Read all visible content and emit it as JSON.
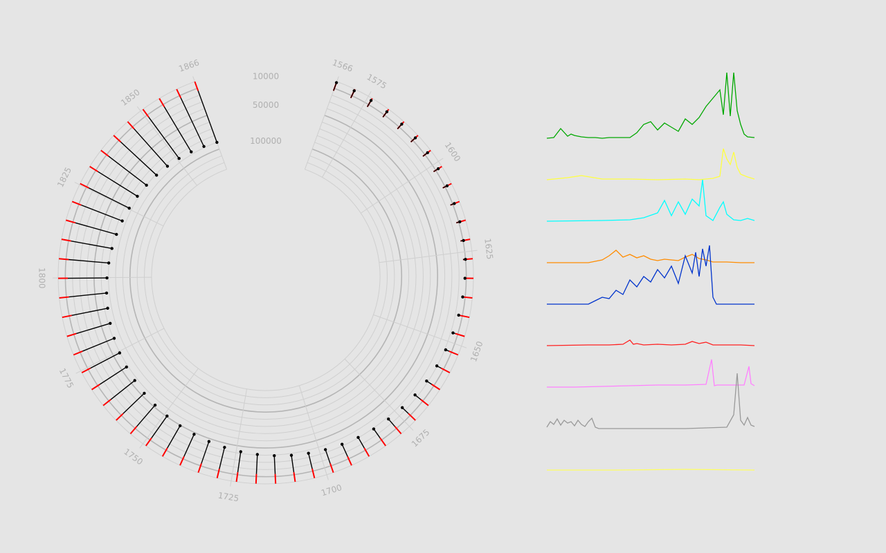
{
  "chart_data": [
    {
      "type": "radial-lollipop",
      "title": "",
      "year_range": [
        1566,
        1866
      ],
      "year_tick_labels": [
        "1566",
        "1575",
        "1600",
        "1625",
        "1650",
        "1675",
        "1700",
        "1725",
        "1750",
        "1775",
        "1800",
        "1825",
        "1850",
        "1866"
      ],
      "ring_labels": [
        "10000",
        "50000",
        "100000"
      ],
      "ring_values": [
        10000,
        50000,
        100000
      ],
      "r_domain": [
        0,
        130000
      ],
      "grid": true,
      "colors": {
        "embarked": "#ff0000",
        "disembarked": "#000000",
        "grid": "#cfcfcf",
        "ring": "#b5b5b5",
        "label": "#b0b0b0"
      },
      "series": [
        {
          "key": "embarked",
          "values": [
            2000,
            3000,
            4000,
            5000,
            5500,
            6000,
            6500,
            7000,
            8000,
            9000,
            10000,
            11000,
            12000,
            14000,
            16000,
            18000,
            20000,
            22000,
            24000,
            26000,
            28000,
            30000,
            32000,
            34000,
            36000,
            38000,
            40000,
            42000,
            44000,
            46000,
            48000,
            50000,
            52000,
            54000,
            56000,
            58000,
            60000,
            62000,
            64000,
            66000,
            68000,
            70000,
            72000,
            74000,
            76000,
            78000,
            80000,
            82000,
            84000,
            86000,
            88000,
            90000,
            92000,
            94000,
            96000,
            98000,
            100000,
            102000,
            104000,
            106000
          ]
        },
        {
          "key": "disembarked",
          "values": [
            1500,
            2400,
            3300,
            4200,
            4600,
            5000,
            5400,
            5900,
            6800,
            7600,
            8400,
            9300,
            10100,
            11800,
            13500,
            15200,
            16900,
            18600,
            20300,
            22000,
            23700,
            25400,
            27100,
            28800,
            30500,
            32200,
            33900,
            35600,
            37300,
            39000,
            40700,
            42400,
            44100,
            45800,
            47500,
            49200,
            50900,
            52600,
            54300,
            56000,
            57700,
            59400,
            61100,
            62800,
            64500,
            66200,
            67900,
            69600,
            71300,
            73000,
            74700,
            76400,
            78100,
            79800,
            81500,
            83200,
            84900,
            86600,
            88300,
            90000
          ]
        }
      ]
    },
    {
      "type": "line",
      "panels": [
        {
          "color": "#00a800",
          "x": [
            0,
            10,
            20,
            30,
            35,
            40,
            50,
            60,
            70,
            80,
            90,
            100,
            110,
            120,
            130,
            140,
            150,
            160,
            170,
            180,
            190,
            200,
            210,
            220,
            230,
            240,
            250,
            255,
            260,
            265,
            270,
            275,
            280,
            285,
            290,
            300
          ],
          "values": [
            0,
            1,
            14,
            3,
            6,
            4,
            2,
            1,
            1,
            0,
            1,
            1,
            1,
            1,
            8,
            20,
            24,
            12,
            22,
            16,
            10,
            28,
            20,
            30,
            46,
            58,
            70,
            34,
            95,
            32,
            95,
            40,
            20,
            6,
            2,
            1
          ]
        },
        {
          "color": "#ffff40",
          "x": [
            0,
            30,
            50,
            80,
            120,
            160,
            200,
            220,
            240,
            250,
            255,
            260,
            265,
            270,
            275,
            280,
            290,
            300
          ],
          "values": [
            0,
            3,
            6,
            1,
            1,
            0,
            1,
            0,
            2,
            5,
            45,
            30,
            22,
            40,
            18,
            8,
            4,
            1
          ]
        },
        {
          "color": "#00ffff",
          "x": [
            0,
            80,
            120,
            140,
            160,
            170,
            180,
            190,
            200,
            210,
            220,
            225,
            230,
            240,
            250,
            255,
            260,
            270,
            280,
            290,
            300
          ],
          "values": [
            0,
            1,
            2,
            5,
            12,
            30,
            8,
            28,
            10,
            32,
            22,
            60,
            8,
            1,
            20,
            28,
            10,
            2,
            1,
            4,
            1
          ]
        },
        {
          "color": "#ff8c00",
          "x": [
            0,
            60,
            80,
            90,
            100,
            110,
            120,
            130,
            140,
            150,
            160,
            170,
            180,
            190,
            200,
            210,
            220,
            230,
            240,
            260,
            280,
            300
          ],
          "values": [
            0,
            0,
            4,
            10,
            18,
            8,
            12,
            7,
            10,
            5,
            3,
            5,
            4,
            3,
            8,
            12,
            6,
            4,
            1,
            1,
            0,
            0
          ]
        },
        {
          "color": "#0033cc",
          "x": [
            0,
            60,
            70,
            80,
            90,
            100,
            110,
            120,
            130,
            140,
            150,
            160,
            170,
            180,
            190,
            200,
            210,
            215,
            220,
            225,
            230,
            235,
            240,
            245,
            250,
            300
          ],
          "values": [
            0,
            0,
            5,
            10,
            8,
            20,
            14,
            35,
            25,
            40,
            32,
            50,
            38,
            55,
            30,
            70,
            45,
            75,
            40,
            80,
            55,
            85,
            10,
            0,
            0,
            0
          ]
        },
        {
          "color": "#ff2020",
          "x": [
            0,
            60,
            90,
            110,
            120,
            125,
            130,
            140,
            160,
            180,
            200,
            210,
            220,
            230,
            240,
            260,
            280,
            300
          ],
          "values": [
            0,
            1,
            1,
            2,
            8,
            2,
            3,
            1,
            2,
            1,
            2,
            6,
            3,
            5,
            1,
            1,
            1,
            0
          ]
        },
        {
          "color": "#ff80ff",
          "x": [
            0,
            40,
            80,
            120,
            160,
            200,
            230,
            238,
            242,
            246,
            250,
            270,
            285,
            292,
            295,
            300
          ],
          "values": [
            0,
            0,
            1,
            2,
            3,
            3,
            4,
            40,
            2,
            3,
            3,
            3,
            3,
            30,
            5,
            2
          ]
        },
        {
          "color": "#999999",
          "x": [
            0,
            5,
            10,
            15,
            20,
            25,
            30,
            35,
            40,
            45,
            50,
            55,
            60,
            65,
            70,
            75,
            80,
            120,
            200,
            260,
            270,
            275,
            280,
            285,
            290,
            295,
            300
          ],
          "values": [
            2,
            10,
            6,
            14,
            5,
            12,
            8,
            10,
            4,
            12,
            6,
            3,
            10,
            15,
            2,
            0,
            0,
            0,
            0,
            2,
            20,
            80,
            12,
            5,
            16,
            5,
            3
          ]
        },
        {
          "color": "#ffff60",
          "x": [
            0,
            100,
            200,
            300
          ],
          "values": [
            0,
            0,
            1,
            0
          ]
        }
      ]
    }
  ]
}
